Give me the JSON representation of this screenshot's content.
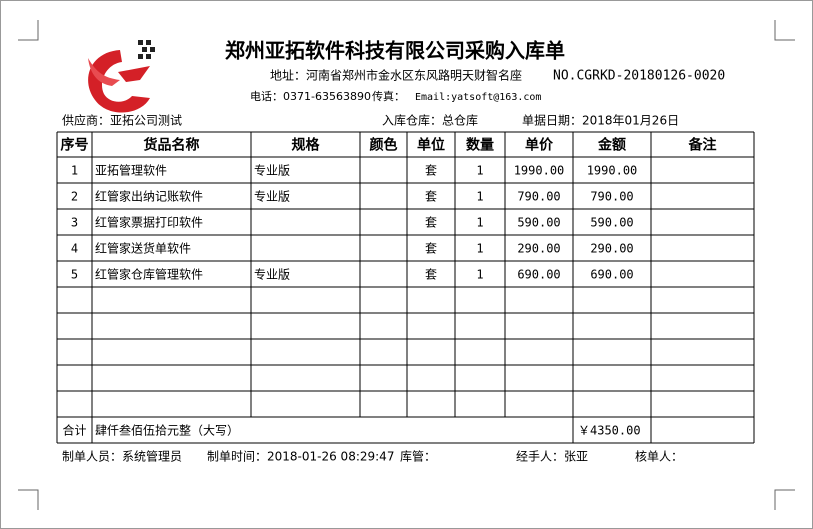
{
  "header": {
    "title": "郑州亚拓软件科技有限公司采购入库单",
    "address": "地址：河南省郑州市金水区东风路明天财智名座",
    "number": "NO.CGRKD-20180126-0020",
    "phone": "电话：0371-63563890",
    "fax": "传真：",
    "email": "Email:yatsoft@163.com"
  },
  "info": {
    "supplier": "供应商：亚拓公司测试",
    "warehouse": "入库仓库：总仓库",
    "date": "单据日期：2018年01月26日"
  },
  "table": {
    "columns": [
      "序号",
      "货品名称",
      "规格",
      "颜色",
      "单位",
      "数量",
      "单价",
      "金额",
      "备注"
    ],
    "rows": [
      {
        "no": "1",
        "name": "亚拓管理软件",
        "spec": "专业版",
        "unit": "套",
        "qty": "1",
        "price": "1990.00",
        "amount": "1990.00"
      },
      {
        "no": "2",
        "name": "红管家出纳记账软件",
        "spec": "专业版",
        "unit": "套",
        "qty": "1",
        "price": "790.00",
        "amount": "790.00"
      },
      {
        "no": "3",
        "name": "红管家票据打印软件",
        "unit": "套",
        "qty": "1",
        "price": "590.00",
        "amount": "590.00"
      },
      {
        "no": "4",
        "name": "红管家送货单软件",
        "unit": "套",
        "qty": "1",
        "price": "290.00",
        "amount": "290.00"
      },
      {
        "no": "5",
        "name": "红管家仓库管理软件",
        "spec": "专业版",
        "unit": "套",
        "qty": "1",
        "price": "690.00",
        "amount": "690.00"
      }
    ],
    "total": {
      "label": "合计",
      "words": "肆仟叁佰伍拾元整（大写）",
      "amount": "￥4350.00"
    }
  },
  "footer": {
    "maker": "制单人员：系统管理员",
    "time": "制单时间：2018-01-26 08:29:47",
    "keeper": "库管：",
    "handler": "经手人：张亚",
    "checker": "核单人："
  }
}
